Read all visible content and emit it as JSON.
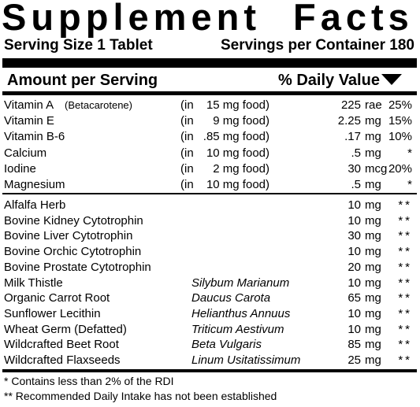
{
  "title": "Supplement Facts",
  "serving_size": "Serving Size 1 Tablet",
  "servings_per_container": "Servings per Container 180",
  "header": {
    "amount": "Amount per Serving",
    "daily_value": "% Daily Value"
  },
  "vitamins": [
    {
      "name": "Vitamin A",
      "note": "(Betacarotene)",
      "src": "(in",
      "food": "15 mg food)",
      "amount": "225",
      "unit": "rae",
      "dv": "25%"
    },
    {
      "name": "Vitamin E",
      "src": "(in",
      "food": "9 mg food)",
      "amount": "2.25",
      "unit": "mg",
      "dv": "15%"
    },
    {
      "name": "Vitamin B-6",
      "src": "(in",
      "food": ".85 mg food)",
      "amount": ".17",
      "unit": "mg",
      "dv": "10%"
    },
    {
      "name": "Calcium",
      "src": "(in",
      "food": "10 mg food)",
      "amount": ".5",
      "unit": "mg",
      "dv": "*"
    },
    {
      "name": "Iodine",
      "src": "(in",
      "food": "2 mg food)",
      "amount": "30",
      "unit": "mcg",
      "dv": "20%"
    },
    {
      "name": "Magnesium",
      "src": "(in",
      "food": "10 mg food)",
      "amount": ".5",
      "unit": "mg",
      "dv": "*"
    }
  ],
  "ingredients": [
    {
      "name": "Alfalfa Herb",
      "sci": "",
      "amount": "10",
      "unit": "mg",
      "dv": "**"
    },
    {
      "name": "Bovine Kidney Cytotrophin",
      "sci": "",
      "amount": "10",
      "unit": "mg",
      "dv": "**"
    },
    {
      "name": "Bovine Liver Cytotrophin",
      "sci": "",
      "amount": "30",
      "unit": "mg",
      "dv": "**"
    },
    {
      "name": "Bovine Orchic Cytotrophin",
      "sci": "",
      "amount": "10",
      "unit": "mg",
      "dv": "**"
    },
    {
      "name": "Bovine Prostate Cytotrophin",
      "sci": "",
      "amount": "20",
      "unit": "mg",
      "dv": "**"
    },
    {
      "name": "Milk Thistle",
      "sci": "Silybum Marianum",
      "amount": "10",
      "unit": "mg",
      "dv": "**"
    },
    {
      "name": "Organic Carrot Root",
      "sci": "Daucus Carota",
      "amount": "65",
      "unit": "mg",
      "dv": "**"
    },
    {
      "name": "Sunflower Lecithin",
      "sci": "Helianthus Annuus",
      "amount": "10",
      "unit": "mg",
      "dv": "**"
    },
    {
      "name": "Wheat Germ (Defatted)",
      "sci": "Triticum Aestivum",
      "amount": "10",
      "unit": "mg",
      "dv": "**"
    },
    {
      "name": "Wildcrafted Beet Root",
      "sci": "Beta Vulgaris",
      "amount": "85",
      "unit": "mg",
      "dv": "**"
    },
    {
      "name": "Wildcrafted Flaxseeds",
      "sci": "Linum Usitatissimum",
      "amount": "25",
      "unit": "mg",
      "dv": "**"
    }
  ],
  "footnotes": [
    "* Contains less than 2% of the RDI",
    "** Recommended Daily Intake has not been established"
  ]
}
